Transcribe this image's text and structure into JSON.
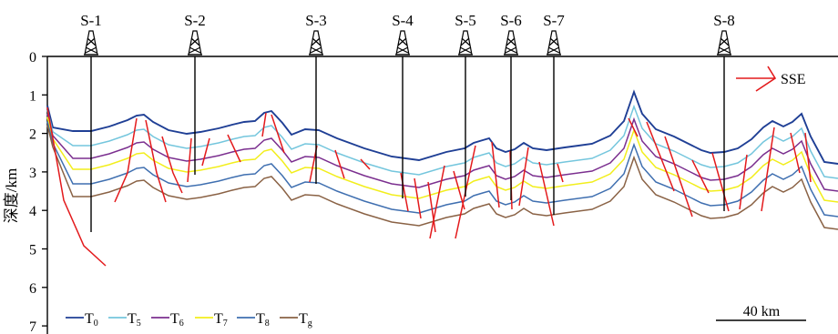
{
  "axis": {
    "ylabel": "深度/km",
    "yticks": [
      "0",
      "1",
      "2",
      "3",
      "4",
      "5",
      "6",
      "7"
    ]
  },
  "wells": [
    "S-1",
    "S-2",
    "S-3",
    "S-4",
    "S-5",
    "S-6",
    "S-7",
    "S-8"
  ],
  "direction_label": "SSE",
  "scale_bar": "40 km",
  "legend": [
    {
      "base": "T",
      "sub": "0",
      "color": "#1f3f95"
    },
    {
      "base": "T",
      "sub": "5",
      "color": "#74c6dd"
    },
    {
      "base": "T",
      "sub": "6",
      "color": "#7b2f8f"
    },
    {
      "base": "T",
      "sub": "7",
      "color": "#f2ee1c"
    },
    {
      "base": "T",
      "sub": "8",
      "color": "#3f6fb0"
    },
    {
      "base": "T",
      "sub": "g",
      "color": "#8a6245"
    }
  ],
  "fault_color": "#e31a1c"
}
